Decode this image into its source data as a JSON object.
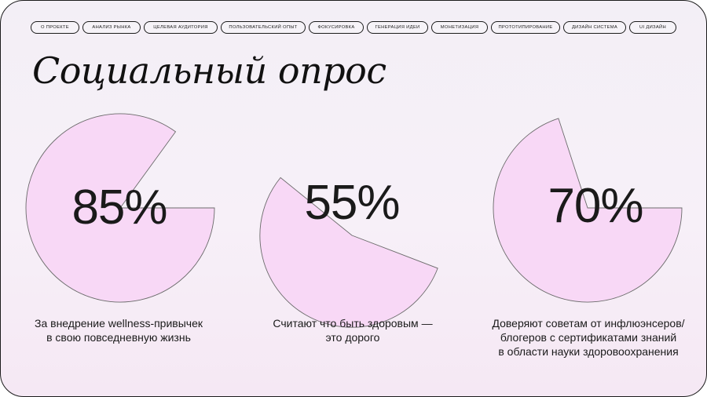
{
  "nav": {
    "items": [
      "О ПРОЕКТЕ",
      "АНАЛИЗ РЫНКА",
      "ЦЕЛЕВАЯ АУДИТОРИЯ",
      "ПОЛЬЗОВАТЕЛЬСКИЙ ОПЫТ",
      "ФОКУСИРОВКА",
      "ГЕНЕРАЦИЯ ИДЕИ",
      "МОНЕТИЗАЦИЯ",
      "ПРОТОТИПИРОВАНИЕ",
      "ДИЗАЙН СИСТЕМА",
      "UI ДИЗАЙН"
    ]
  },
  "title": "Социальный опрос",
  "colors": {
    "pie_fill": "#f8d8f6",
    "stroke": "#6b6b6b",
    "text": "#1a1a1a"
  },
  "stats": [
    {
      "value_label": "85%",
      "percent": 85,
      "caption": [
        "За внедрение wellness-привычек",
        "в свою повседневную жизнь"
      ]
    },
    {
      "value_label": "55%",
      "percent": 55,
      "caption": [
        "Считают что быть здоровым —",
        "это дорого"
      ]
    },
    {
      "value_label": "70%",
      "percent": 70,
      "caption": [
        "Доверяют советам от инфлюэнсеров/",
        "блогеров с сертификатами знаний",
        "в области науки здоровоохранения"
      ]
    }
  ]
}
